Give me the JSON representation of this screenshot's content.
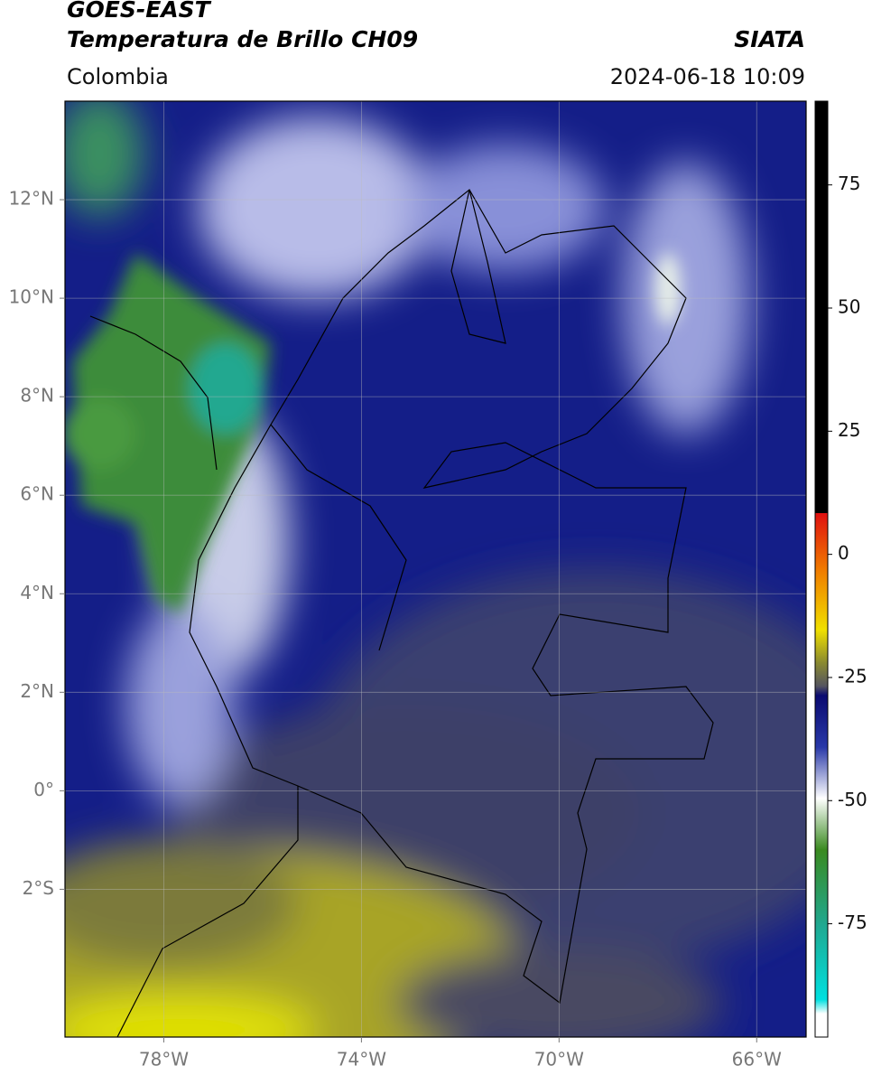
{
  "header": {
    "title": "GOES-EAST",
    "subtitle": "Temperatura de Brillo CH09",
    "source": "SIATA",
    "region": "Colombia",
    "datetime": "2024-06-18 10:09"
  },
  "map": {
    "xlim": [
      -80,
      -65
    ],
    "ylim": [
      -5,
      14
    ],
    "xticks": [
      {
        "value": -78,
        "label": "78°W"
      },
      {
        "value": -74,
        "label": "74°W"
      },
      {
        "value": -70,
        "label": "70°W"
      },
      {
        "value": -66,
        "label": "66°W"
      }
    ],
    "yticks": [
      {
        "value": 12,
        "label": "12°N"
      },
      {
        "value": 10,
        "label": "10°N"
      },
      {
        "value": 8,
        "label": "8°N"
      },
      {
        "value": 6,
        "label": "6°N"
      },
      {
        "value": 4,
        "label": "4°N"
      },
      {
        "value": 2,
        "label": "2°N"
      },
      {
        "value": 0,
        "label": "0°"
      },
      {
        "value": -2,
        "label": "2°S"
      }
    ],
    "grid": true
  },
  "colorbar": {
    "lim": [
      -98,
      92
    ],
    "ticks": [
      75,
      50,
      25,
      0,
      -25,
      -50,
      -75
    ]
  }
}
